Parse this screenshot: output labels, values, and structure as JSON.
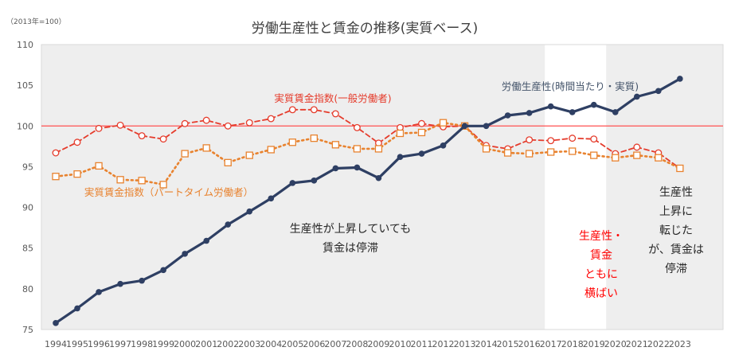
{
  "chart_data": {
    "type": "line",
    "title": "労働生産性と賃金の推移(実質ベース)",
    "unit_label": "（2013年=100）",
    "ylim": [
      75,
      110
    ],
    "y_ticks": [
      75,
      80,
      85,
      90,
      95,
      100,
      105,
      110
    ],
    "reference_line": 100,
    "grid": false,
    "categories": [
      "1994",
      "1995",
      "1996",
      "1997",
      "1998",
      "1999",
      "2000",
      "2001",
      "2002",
      "2003",
      "2004",
      "2005",
      "2006",
      "2007",
      "2008",
      "2009",
      "2010",
      "2011",
      "2012",
      "2013",
      "2014",
      "2015",
      "2016",
      "2017",
      "2018",
      "2019",
      "2020",
      "2021",
      "2022",
      "2023"
    ],
    "series": [
      {
        "name": "労働生産性(時間当たり・実質)",
        "color": "#2e3f63",
        "style": "solid-filled-dot",
        "values": [
          75.8,
          77.6,
          79.6,
          80.6,
          81.0,
          82.3,
          84.3,
          85.9,
          87.9,
          89.5,
          91.1,
          93.0,
          93.3,
          94.8,
          94.9,
          93.6,
          96.2,
          96.6,
          97.6,
          100.0,
          100.0,
          101.3,
          101.6,
          102.4,
          101.7,
          102.6,
          101.7,
          103.6,
          104.3,
          105.8
        ]
      },
      {
        "name": "実質賃金指数(一般労働者)",
        "color": "#e53c2c",
        "style": "dashed-open-circle",
        "values": [
          96.7,
          98.0,
          99.7,
          100.1,
          98.8,
          98.4,
          100.3,
          100.7,
          100.0,
          100.4,
          100.9,
          102.0,
          102.0,
          101.5,
          99.8,
          97.9,
          99.8,
          100.3,
          99.9,
          100.0,
          97.6,
          97.2,
          98.3,
          98.2,
          98.5,
          98.4,
          96.6,
          97.4,
          96.7,
          94.8
        ]
      },
      {
        "name": "実質賃金指数（パートタイム労働者）",
        "color": "#e8822e",
        "style": "dotted-open-square",
        "values": [
          93.8,
          94.1,
          95.1,
          93.4,
          93.3,
          92.8,
          96.6,
          97.3,
          95.5,
          96.4,
          97.1,
          98.0,
          98.5,
          97.7,
          97.2,
          97.2,
          99.1,
          99.2,
          100.4,
          100.0,
          97.2,
          96.7,
          96.6,
          96.8,
          96.9,
          96.4,
          96.1,
          96.4,
          96.1,
          94.8
        ]
      }
    ],
    "shaded_regions": [
      {
        "from": "1994",
        "to": "2016"
      },
      {
        "from": "2020",
        "to": "2023"
      }
    ],
    "annotations": [
      {
        "lines": [
          "生産性が上昇していても",
          "賃金は停滞"
        ],
        "color": "#262626"
      },
      {
        "lines": [
          "生産性・",
          "賃金",
          "ともに",
          "横ばい"
        ],
        "color": "#ff0000"
      },
      {
        "lines": [
          "生産性",
          "上昇に",
          "転じた",
          "が、賃金は",
          "停滞"
        ],
        "color": "#262626"
      }
    ]
  }
}
